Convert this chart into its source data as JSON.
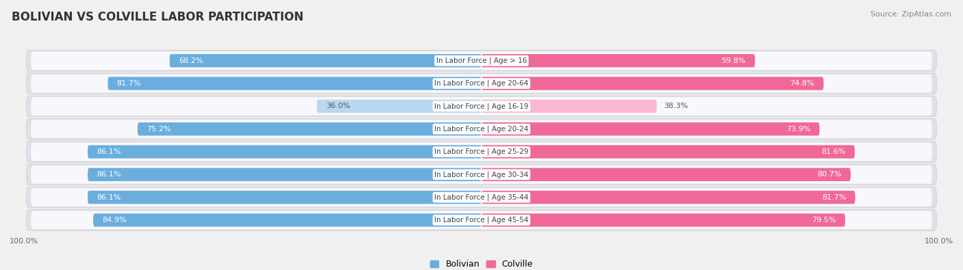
{
  "title": "BOLIVIAN VS COLVILLE LABOR PARTICIPATION",
  "source": "Source: ZipAtlas.com",
  "categories": [
    "In Labor Force | Age > 16",
    "In Labor Force | Age 20-64",
    "In Labor Force | Age 16-19",
    "In Labor Force | Age 20-24",
    "In Labor Force | Age 25-29",
    "In Labor Force | Age 30-34",
    "In Labor Force | Age 35-44",
    "In Labor Force | Age 45-54"
  ],
  "bolivian_values": [
    68.2,
    81.7,
    36.0,
    75.2,
    86.1,
    86.1,
    86.1,
    84.9
  ],
  "colville_values": [
    59.8,
    74.8,
    38.3,
    73.9,
    81.6,
    80.7,
    81.7,
    79.5
  ],
  "bolivian_color": "#6aaede",
  "bolivian_color_light": "#b8d8f0",
  "colville_color": "#f06898",
  "colville_color_light": "#f8b8d0",
  "background_color": "#f0f0f0",
  "row_bg_outer": "#e0e0e8",
  "row_bg_inner": "#f8f8fc",
  "title_fontsize": 12,
  "label_fontsize": 8,
  "tick_fontsize": 8,
  "legend_fontsize": 9,
  "source_fontsize": 8
}
